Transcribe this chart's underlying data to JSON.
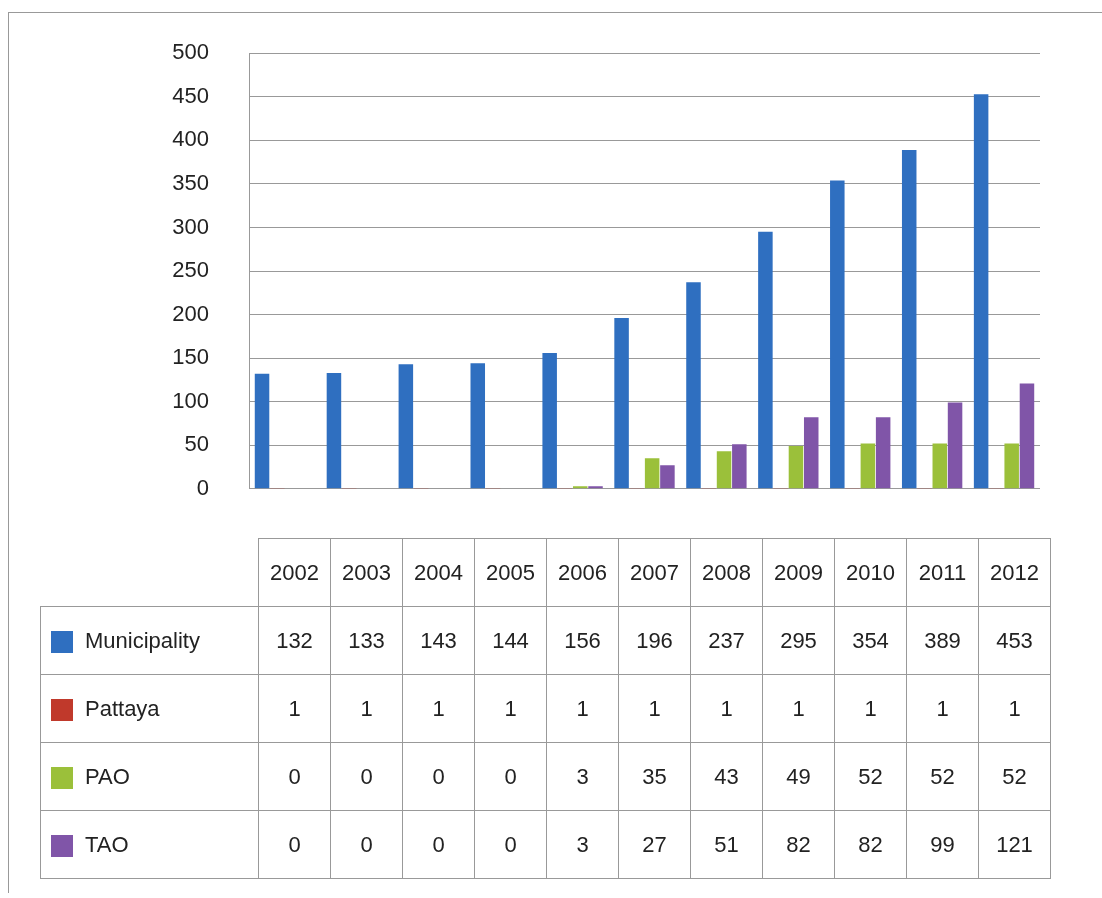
{
  "chart_data": {
    "type": "bar",
    "categories": [
      "2002",
      "2003",
      "2004",
      "2005",
      "2006",
      "2007",
      "2008",
      "2009",
      "2010",
      "2011",
      "2012"
    ],
    "series": [
      {
        "name": "Municipality",
        "color": "#2f6fc0",
        "values": [
          132,
          133,
          143,
          144,
          156,
          196,
          237,
          295,
          354,
          389,
          453
        ]
      },
      {
        "name": "Pattaya",
        "color": "#c0392b",
        "values": [
          1,
          1,
          1,
          1,
          1,
          1,
          1,
          1,
          1,
          1,
          1
        ]
      },
      {
        "name": "PAO",
        "color": "#9bc03a",
        "values": [
          0,
          0,
          0,
          0,
          3,
          35,
          43,
          49,
          52,
          52,
          52
        ]
      },
      {
        "name": "TAO",
        "color": "#8055a8",
        "values": [
          0,
          0,
          0,
          0,
          3,
          27,
          51,
          82,
          82,
          99,
          121
        ]
      }
    ],
    "ylim": [
      0,
      500
    ],
    "yticks": [
      0,
      50,
      100,
      150,
      200,
      250,
      300,
      350,
      400,
      450,
      500
    ],
    "grid": "y",
    "legend": "bottom",
    "data_labels": true
  }
}
